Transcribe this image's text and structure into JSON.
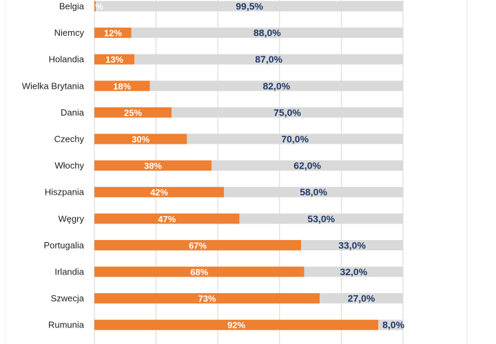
{
  "chart_data": {
    "type": "bar",
    "orientation": "horizontal",
    "stacked": true,
    "categories": [
      "Belgia",
      "Niemcy",
      "Holandia",
      "Wielka Brytania",
      "Dania",
      "Czechy",
      "Włochy",
      "Hiszpania",
      "Węgry",
      "Portugalia",
      "Irlandia",
      "Szwecja",
      "Rumunia"
    ],
    "series": [
      {
        "color": "#ef7f31",
        "values": [
          0.5,
          12,
          13,
          18,
          25,
          30,
          38,
          42,
          47,
          67,
          68,
          73,
          92
        ],
        "labels": [
          "%",
          "12%",
          "13%",
          "18%",
          "25%",
          "30%",
          "38%",
          "42%",
          "47%",
          "67%",
          "68%",
          "73%",
          "92%"
        ]
      },
      {
        "color": "#d9d9d9",
        "values": [
          99.5,
          88,
          87,
          82,
          75,
          70,
          62,
          58,
          53,
          33,
          32,
          27,
          8
        ],
        "labels": [
          "99,5%",
          "88,0%",
          "87,0%",
          "82,0%",
          "75,0%",
          "70,0%",
          "62,0%",
          "58,0%",
          "53,0%",
          "33,0%",
          "32,0%",
          "27,0%",
          "8,0%"
        ]
      }
    ],
    "xlim": [
      0,
      100
    ],
    "grid": true,
    "legend": "none"
  },
  "colors": {
    "gridline": "#d6d6d6",
    "rest_label": "#1f3a68",
    "in_label": "#ffffff"
  }
}
